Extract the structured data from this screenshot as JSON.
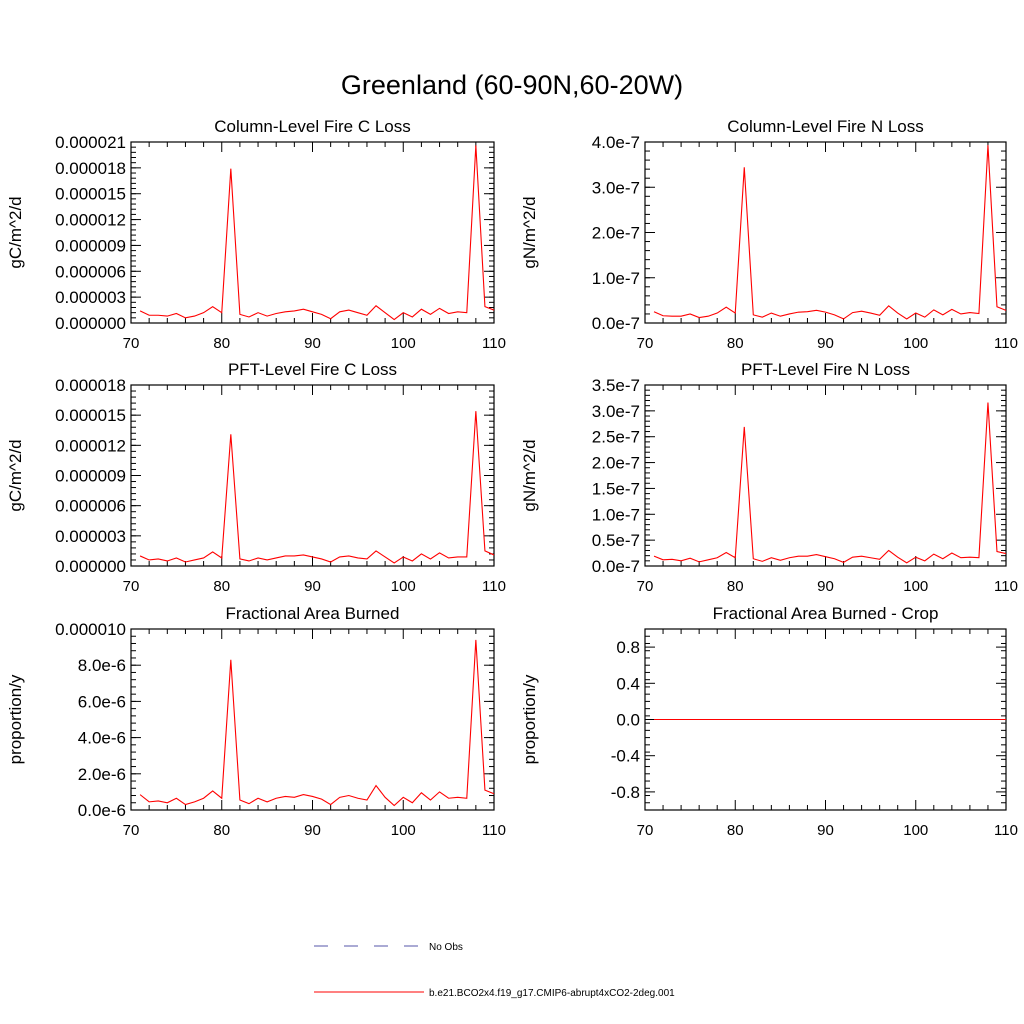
{
  "figure": {
    "title": "Greenland (60-90N,60-20W)"
  },
  "colors": {
    "model_line": "#ff0000",
    "obs_line": "#5555aa",
    "axis": "#000000"
  },
  "legend": {
    "placement": "bottom-center",
    "entries": [
      {
        "label": "No Obs",
        "style": "dashed",
        "color": "#5555aa"
      },
      {
        "label": "b.e21.BCO2x4.f19_g17.CMIP6-abrupt4xCO2-2deg.001",
        "style": "solid",
        "color": "#ff0000"
      }
    ]
  },
  "chart_data": [
    {
      "type": "line",
      "title": "Column-Level Fire C Loss",
      "xlabel": "",
      "ylabel": "gC/m^2/d",
      "xlim": [
        70,
        110
      ],
      "ylim": [
        0,
        2.1e-05
      ],
      "xticks": [
        {
          "v": 70,
          "label": "70"
        },
        {
          "v": 80,
          "label": "80"
        },
        {
          "v": 90,
          "label": "90"
        },
        {
          "v": 100,
          "label": "100"
        },
        {
          "v": 110,
          "label": "110"
        }
      ],
      "yticks": [
        {
          "v": 0,
          "label": "0.000000"
        },
        {
          "v": 3e-06,
          "label": "0.000003"
        },
        {
          "v": 6e-06,
          "label": "0.000006"
        },
        {
          "v": 9e-06,
          "label": "0.000009"
        },
        {
          "v": 1.2e-05,
          "label": "0.000012"
        },
        {
          "v": 1.5e-05,
          "label": "0.000015"
        },
        {
          "v": 1.8e-05,
          "label": "0.000018"
        },
        {
          "v": 2.1e-05,
          "label": "0.000021"
        }
      ],
      "x": [
        71,
        72,
        73,
        74,
        75,
        76,
        77,
        78,
        79,
        80,
        81,
        82,
        83,
        84,
        85,
        86,
        87,
        88,
        89,
        90,
        91,
        92,
        93,
        94,
        95,
        96,
        97,
        98,
        99,
        100,
        101,
        102,
        103,
        104,
        105,
        106,
        107,
        108,
        109,
        110
      ],
      "series": [
        {
          "values": [
            1.4e-06,
            9e-07,
            9e-07,
            8e-07,
            1.1e-06,
            6e-07,
            8e-07,
            1.2e-06,
            1.9e-06,
            1.2e-06,
            1.79e-05,
            1e-06,
            7e-07,
            1.2e-06,
            8e-07,
            1.1e-06,
            1.3e-06,
            1.4e-06,
            1.6e-06,
            1.3e-06,
            1e-06,
            5e-07,
            1.3e-06,
            1.5e-06,
            1.2e-06,
            9e-07,
            2e-06,
            1.2e-06,
            4e-07,
            1.2e-06,
            7e-07,
            1.6e-06,
            1e-06,
            1.7e-06,
            1.1e-06,
            1.3e-06,
            1.2e-06,
            2.06e-05,
            1.9e-06,
            1.5e-06
          ]
        }
      ]
    },
    {
      "type": "line",
      "title": "Column-Level Fire N Loss",
      "xlabel": "",
      "ylabel": "gN/m^2/d",
      "xlim": [
        70,
        110
      ],
      "ylim": [
        0,
        4e-07
      ],
      "xticks": [
        {
          "v": 70,
          "label": "70"
        },
        {
          "v": 80,
          "label": "80"
        },
        {
          "v": 90,
          "label": "90"
        },
        {
          "v": 100,
          "label": "100"
        },
        {
          "v": 110,
          "label": "110"
        }
      ],
      "yticks": [
        {
          "v": 0,
          "label": "0.0e-7"
        },
        {
          "v": 1e-07,
          "label": "1.0e-7"
        },
        {
          "v": 2e-07,
          "label": "2.0e-7"
        },
        {
          "v": 3e-07,
          "label": "3.0e-7"
        },
        {
          "v": 4e-07,
          "label": "4.0e-7"
        }
      ],
      "x": [
        71,
        72,
        73,
        74,
        75,
        76,
        77,
        78,
        79,
        80,
        81,
        82,
        83,
        84,
        85,
        86,
        87,
        88,
        89,
        90,
        91,
        92,
        93,
        94,
        95,
        96,
        97,
        98,
        99,
        100,
        101,
        102,
        103,
        104,
        105,
        106,
        107,
        108,
        109,
        110
      ],
      "series": [
        {
          "values": [
            2.5e-08,
            1.6e-08,
            1.5e-08,
            1.5e-08,
            2e-08,
            1.2e-08,
            1.5e-08,
            2.2e-08,
            3.5e-08,
            2.2e-08,
            3.44e-07,
            1.8e-08,
            1.3e-08,
            2.2e-08,
            1.5e-08,
            2e-08,
            2.4e-08,
            2.5e-08,
            2.8e-08,
            2.4e-08,
            1.8e-08,
            9e-09,
            2.3e-08,
            2.6e-08,
            2.2e-08,
            1.7e-08,
            3.8e-08,
            2.2e-08,
            9e-09,
            2.2e-08,
            1.3e-08,
            2.9e-08,
            1.8e-08,
            3e-08,
            2e-08,
            2.3e-08,
            2.1e-08,
            3.93e-07,
            3.6e-08,
            2.8e-08
          ]
        }
      ]
    },
    {
      "type": "line",
      "title": "PFT-Level Fire C Loss",
      "xlabel": "",
      "ylabel": "gC/m^2/d",
      "xlim": [
        70,
        110
      ],
      "ylim": [
        0,
        1.8e-05
      ],
      "xticks": [
        {
          "v": 70,
          "label": "70"
        },
        {
          "v": 80,
          "label": "80"
        },
        {
          "v": 90,
          "label": "90"
        },
        {
          "v": 100,
          "label": "100"
        },
        {
          "v": 110,
          "label": "110"
        }
      ],
      "yticks": [
        {
          "v": 0,
          "label": "0.000000"
        },
        {
          "v": 3e-06,
          "label": "0.000003"
        },
        {
          "v": 6e-06,
          "label": "0.000006"
        },
        {
          "v": 9e-06,
          "label": "0.000009"
        },
        {
          "v": 1.2e-05,
          "label": "0.000012"
        },
        {
          "v": 1.5e-05,
          "label": "0.000015"
        },
        {
          "v": 1.8e-05,
          "label": "0.000018"
        }
      ],
      "x": [
        71,
        72,
        73,
        74,
        75,
        76,
        77,
        78,
        79,
        80,
        81,
        82,
        83,
        84,
        85,
        86,
        87,
        88,
        89,
        90,
        91,
        92,
        93,
        94,
        95,
        96,
        97,
        98,
        99,
        100,
        101,
        102,
        103,
        104,
        105,
        106,
        107,
        108,
        109,
        110
      ],
      "series": [
        {
          "values": [
            1e-06,
            6e-07,
            7e-07,
            5e-07,
            8e-07,
            4e-07,
            6e-07,
            8e-07,
            1.4e-06,
            8e-07,
            1.31e-05,
            7e-07,
            5e-07,
            8e-07,
            6e-07,
            8e-07,
            1e-06,
            1e-06,
            1.1e-06,
            9e-07,
            7e-07,
            4e-07,
            9e-07,
            1e-06,
            8e-07,
            7e-07,
            1.5e-06,
            9e-07,
            3e-07,
            9e-07,
            5e-07,
            1.2e-06,
            7e-07,
            1.3e-06,
            8e-07,
            9e-07,
            9e-07,
            1.54e-05,
            1.5e-06,
            1.1e-06
          ]
        }
      ]
    },
    {
      "type": "line",
      "title": "PFT-Level Fire N Loss",
      "xlabel": "",
      "ylabel": "gN/m^2/d",
      "xlim": [
        70,
        110
      ],
      "ylim": [
        0,
        3.5e-07
      ],
      "xticks": [
        {
          "v": 70,
          "label": "70"
        },
        {
          "v": 80,
          "label": "80"
        },
        {
          "v": 90,
          "label": "90"
        },
        {
          "v": 100,
          "label": "100"
        },
        {
          "v": 110,
          "label": "110"
        }
      ],
      "yticks": [
        {
          "v": 0,
          "label": "0.0e-7"
        },
        {
          "v": 5e-08,
          "label": "0.5e-7"
        },
        {
          "v": 1e-07,
          "label": "1.0e-7"
        },
        {
          "v": 1.5e-07,
          "label": "1.5e-7"
        },
        {
          "v": 2e-07,
          "label": "2.0e-7"
        },
        {
          "v": 2.5e-07,
          "label": "2.5e-7"
        },
        {
          "v": 3e-07,
          "label": "3.0e-7"
        },
        {
          "v": 3.5e-07,
          "label": "3.5e-7"
        }
      ],
      "x": [
        71,
        72,
        73,
        74,
        75,
        76,
        77,
        78,
        79,
        80,
        81,
        82,
        83,
        84,
        85,
        86,
        87,
        88,
        89,
        90,
        91,
        92,
        93,
        94,
        95,
        96,
        97,
        98,
        99,
        100,
        101,
        102,
        103,
        104,
        105,
        106,
        107,
        108,
        109,
        110
      ],
      "series": [
        {
          "values": [
            1.9e-08,
            1.2e-08,
            1.3e-08,
            1e-08,
            1.5e-08,
            8e-09,
            1.2e-08,
            1.6e-08,
            2.6e-08,
            1.6e-08,
            2.69e-07,
            1.4e-08,
            9e-09,
            1.6e-08,
            1.1e-08,
            1.6e-08,
            1.9e-08,
            1.9e-08,
            2.2e-08,
            1.8e-08,
            1.4e-08,
            7e-09,
            1.7e-08,
            1.9e-08,
            1.6e-08,
            1.3e-08,
            3e-08,
            1.7e-08,
            6e-09,
            1.7e-08,
            1e-08,
            2.3e-08,
            1.4e-08,
            2.5e-08,
            1.6e-08,
            1.7e-08,
            1.6e-08,
            3.16e-07,
            2.8e-08,
            2.4e-08
          ]
        }
      ]
    },
    {
      "type": "line",
      "title": "Fractional Area Burned",
      "xlabel": "",
      "ylabel": "proportion/y",
      "xlim": [
        70,
        110
      ],
      "ylim": [
        0,
        1e-05
      ],
      "xticks": [
        {
          "v": 70,
          "label": "70"
        },
        {
          "v": 80,
          "label": "80"
        },
        {
          "v": 90,
          "label": "90"
        },
        {
          "v": 100,
          "label": "100"
        },
        {
          "v": 110,
          "label": "110"
        }
      ],
      "yticks": [
        {
          "v": 0,
          "label": "0.0e-6"
        },
        {
          "v": 2e-06,
          "label": "2.0e-6"
        },
        {
          "v": 4e-06,
          "label": "4.0e-6"
        },
        {
          "v": 6e-06,
          "label": "6.0e-6"
        },
        {
          "v": 8e-06,
          "label": "8.0e-6"
        },
        {
          "v": 1e-05,
          "label": "0.000010"
        }
      ],
      "x": [
        71,
        72,
        73,
        74,
        75,
        76,
        77,
        78,
        79,
        80,
        81,
        82,
        83,
        84,
        85,
        86,
        87,
        88,
        89,
        90,
        91,
        92,
        93,
        94,
        95,
        96,
        97,
        98,
        99,
        100,
        101,
        102,
        103,
        104,
        105,
        106,
        107,
        108,
        109,
        110
      ],
      "series": [
        {
          "values": [
            8.5e-07,
            4.5e-07,
            5e-07,
            4e-07,
            6.5e-07,
            3e-07,
            4.5e-07,
            6.5e-07,
            1.05e-06,
            6.5e-07,
            8.3e-06,
            5.5e-07,
            3.5e-07,
            6.5e-07,
            4.5e-07,
            6.5e-07,
            7.5e-07,
            7e-07,
            8.5e-07,
            7.5e-07,
            6e-07,
            3e-07,
            7e-07,
            8e-07,
            6.5e-07,
            5.5e-07,
            1.35e-06,
            7e-07,
            2.5e-07,
            7e-07,
            4e-07,
            9.5e-07,
            5.5e-07,
            1e-06,
            6.5e-07,
            7e-07,
            6.5e-07,
            9.4e-06,
            1.1e-06,
            9e-07
          ]
        }
      ]
    },
    {
      "type": "line",
      "title": "Fractional Area Burned - Crop",
      "xlabel": "",
      "ylabel": "proportion/y",
      "xlim": [
        70,
        110
      ],
      "ylim": [
        -1.0,
        1.0
      ],
      "xticks": [
        {
          "v": 70,
          "label": "70"
        },
        {
          "v": 80,
          "label": "80"
        },
        {
          "v": 90,
          "label": "90"
        },
        {
          "v": 100,
          "label": "100"
        },
        {
          "v": 110,
          "label": "110"
        }
      ],
      "yticks": [
        {
          "v": -0.8,
          "label": "-0.8"
        },
        {
          "v": -0.4,
          "label": "-0.4"
        },
        {
          "v": 0.0,
          "label": "0.0"
        },
        {
          "v": 0.4,
          "label": "0.4"
        },
        {
          "v": 0.8,
          "label": "0.8"
        }
      ],
      "x": [
        71,
        72,
        73,
        74,
        75,
        76,
        77,
        78,
        79,
        80,
        81,
        82,
        83,
        84,
        85,
        86,
        87,
        88,
        89,
        90,
        91,
        92,
        93,
        94,
        95,
        96,
        97,
        98,
        99,
        100,
        101,
        102,
        103,
        104,
        105,
        106,
        107,
        108,
        109,
        110
      ],
      "series": [
        {
          "values": [
            0,
            0,
            0,
            0,
            0,
            0,
            0,
            0,
            0,
            0,
            0,
            0,
            0,
            0,
            0,
            0,
            0,
            0,
            0,
            0,
            0,
            0,
            0,
            0,
            0,
            0,
            0,
            0,
            0,
            0,
            0,
            0,
            0,
            0,
            0,
            0,
            0,
            0,
            0,
            0
          ]
        }
      ]
    }
  ]
}
